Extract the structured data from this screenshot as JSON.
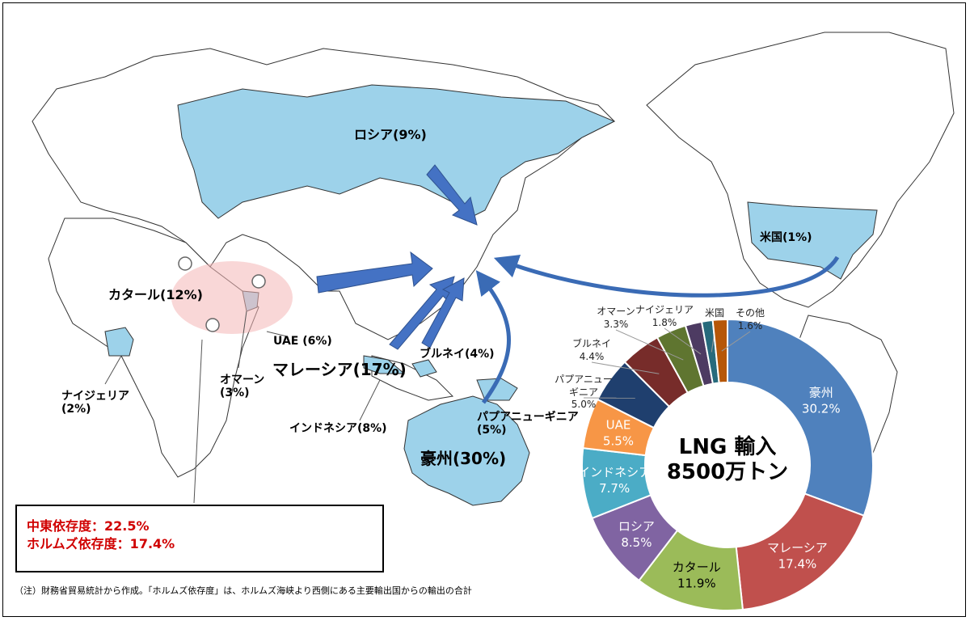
{
  "map_labels": {
    "russia": "ロシア(9%)",
    "usa": "米国(1%)",
    "qatar": "カタール(12%)",
    "uae": "UAE (6%)",
    "oman": "オマーン\n(3%)",
    "nigeria": "ナイジェリア\n(2%)",
    "malaysia": "マレーシア(17%)",
    "brunei": "ブルネイ(4%)",
    "indonesia": "インドネシア(8%)",
    "png": "パプアニューギニア\n(5%)",
    "australia": "豪州(30%)"
  },
  "dependency": {
    "middle_east": "中東依存度：22.5%",
    "hormuz": "ホルムズ依存度：17.4%"
  },
  "note": "（注）財務省貿易統計から作成。「ホルムズ依存度」は、ホルムズ海峡より西側にある主要輸出国からの輸出の合計",
  "chart_data": {
    "type": "pie",
    "donut": true,
    "title": "LNG 輸入\n8500万トン",
    "slices": [
      {
        "label": "豪州",
        "value": 30.2,
        "value_text": "30.2%",
        "color": "#4f81bd",
        "text_color": "#ffffff"
      },
      {
        "label": "マレーシア",
        "value": 17.4,
        "value_text": "17.4%",
        "color": "#c0504d",
        "text_color": "#ffffff"
      },
      {
        "label": "カタール",
        "value": 11.9,
        "value_text": "11.9%",
        "color": "#9bbb59",
        "text_color": "#000000"
      },
      {
        "label": "ロシア",
        "value": 8.5,
        "value_text": "8.5%",
        "color": "#8064a2",
        "text_color": "#ffffff"
      },
      {
        "label": "インドネシア",
        "value": 7.7,
        "value_text": "7.7%",
        "color": "#4bacc6",
        "text_color": "#ffffff"
      },
      {
        "label": "UAE",
        "value": 5.5,
        "value_text": "5.5%",
        "color": "#f79646",
        "text_color": "#ffffff"
      },
      {
        "label": "パプアニューギニア",
        "value": 5.0,
        "value_text": "5.0%",
        "color": "#1f3f6e",
        "text_color": "#000000"
      },
      {
        "label": "ブルネイ",
        "value": 4.4,
        "value_text": "4.4%",
        "color": "#772c2a",
        "text_color": "#000000"
      },
      {
        "label": "オマーン",
        "value": 3.3,
        "value_text": "3.3%",
        "color": "#5f7530",
        "text_color": "#000000"
      },
      {
        "label": "ナイジェリア",
        "value": 1.8,
        "value_text": "1.8%",
        "color": "#4d3b62",
        "text_color": "#000000"
      },
      {
        "label": "米国",
        "value": 1.2,
        "value_text": "",
        "color": "#276a7c",
        "text_color": "#000000"
      },
      {
        "label": "その他",
        "value": 1.6,
        "value_text": "1.6%",
        "color": "#b65708",
        "text_color": "#000000"
      }
    ]
  }
}
